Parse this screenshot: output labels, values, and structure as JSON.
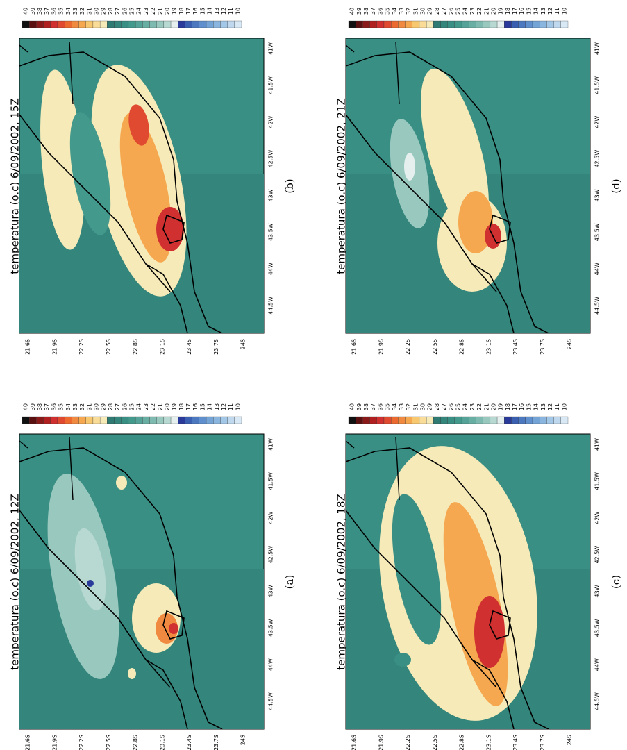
{
  "colorbar": {
    "levels": [
      40,
      39,
      38,
      37,
      36,
      35,
      34,
      33,
      32,
      31,
      30,
      29,
      28,
      27,
      26,
      25,
      24,
      23,
      22,
      21,
      20,
      19,
      18,
      17,
      16,
      15,
      14,
      13,
      12,
      11,
      10
    ],
    "colors": [
      "#111111",
      "#5a1010",
      "#8a1a1a",
      "#b02020",
      "#d03030",
      "#e04a30",
      "#ec6a30",
      "#f08a40",
      "#f5a850",
      "#f8c870",
      "#f9dc98",
      "#f6eab8",
      "#2f7a72",
      "#34857b",
      "#3a8f84",
      "#44998d",
      "#55a398",
      "#68aea3",
      "#7fbab0",
      "#99c8bf",
      "#b8d9d2",
      "#e5f0ee",
      "#2a3a9a",
      "#3a5fb0",
      "#4c78c0",
      "#5f8fcc",
      "#74a3d6",
      "#8ab5de",
      "#a3c7e6",
      "#bfd8ee",
      "#d8e8f5"
    ]
  },
  "lat_labels": [
    "21.6S",
    "21.9S",
    "22.2S",
    "22.5S",
    "22.8S",
    "23.1S",
    "23.4S",
    "23.7S",
    "24S"
  ],
  "lon_labels": [
    "44.5W",
    "44W",
    "43.5W",
    "43W",
    "42.5W",
    "42W",
    "41.5W",
    "41W"
  ],
  "panels": [
    {
      "title": "temperatura (o.c) 6/09/2002, 12Z",
      "label": "(a)"
    },
    {
      "title": "temperatura (o.c) 6/09/2002, 15Z",
      "label": "(b)"
    },
    {
      "title": "temperatura (o.c) 6/09/2002, 18Z",
      "label": "(c)"
    },
    {
      "title": "temperatura (o.c) 6/09/2002, 21Z",
      "label": "(d)"
    }
  ]
}
